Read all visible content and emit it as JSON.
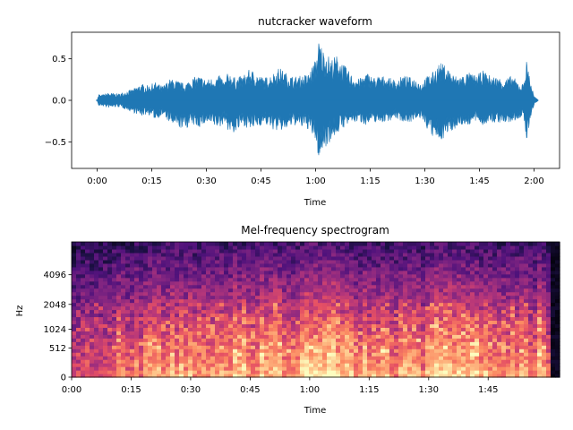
{
  "chart_data": [
    {
      "type": "line",
      "title": "nutcracker waveform",
      "xlabel": "Time",
      "ylabel": "",
      "xlim_seconds": [
        -7,
        127
      ],
      "ylim": [
        -0.82,
        0.82
      ],
      "x_ticks": [
        {
          "value": 0,
          "label": "0:00"
        },
        {
          "value": 15,
          "label": "0:15"
        },
        {
          "value": 30,
          "label": "0:30"
        },
        {
          "value": 45,
          "label": "0:45"
        },
        {
          "value": 60,
          "label": "1:00"
        },
        {
          "value": 75,
          "label": "1:15"
        },
        {
          "value": 90,
          "label": "1:30"
        },
        {
          "value": 105,
          "label": "1:45"
        },
        {
          "value": 120,
          "label": "2:00"
        }
      ],
      "y_ticks": [
        {
          "value": 0.5,
          "label": "0.5"
        },
        {
          "value": 0.0,
          "label": "0.0"
        },
        {
          "value": -0.5,
          "label": "−0.5"
        }
      ],
      "color": "#1f77b4",
      "envelope": {
        "x_seconds": [
          0,
          0.5,
          1,
          3,
          6,
          8,
          10,
          12,
          14,
          16,
          18,
          20,
          22,
          24,
          26,
          28,
          30,
          32,
          34,
          35,
          36,
          38,
          40,
          42,
          44,
          46,
          48,
          50,
          52,
          54,
          56,
          58,
          60,
          61,
          62,
          63,
          64,
          66,
          68,
          70,
          72,
          74,
          76,
          78,
          80,
          82,
          84,
          86,
          88,
          89,
          90,
          92,
          94,
          96,
          98,
          100,
          102,
          104,
          106,
          108,
          110,
          112,
          114,
          116,
          117,
          118,
          119,
          120,
          121
        ],
        "upper": [
          0.01,
          0.08,
          0.06,
          0.09,
          0.08,
          0.11,
          0.14,
          0.2,
          0.18,
          0.22,
          0.17,
          0.26,
          0.24,
          0.2,
          0.27,
          0.3,
          0.25,
          0.28,
          0.3,
          0.22,
          0.35,
          0.27,
          0.3,
          0.38,
          0.32,
          0.27,
          0.32,
          0.4,
          0.33,
          0.28,
          0.3,
          0.32,
          0.5,
          0.75,
          0.62,
          0.6,
          0.5,
          0.55,
          0.42,
          0.3,
          0.26,
          0.34,
          0.28,
          0.3,
          0.28,
          0.24,
          0.3,
          0.28,
          0.26,
          0.2,
          0.28,
          0.33,
          0.46,
          0.42,
          0.3,
          0.3,
          0.34,
          0.3,
          0.36,
          0.3,
          0.28,
          0.26,
          0.3,
          0.2,
          0.2,
          0.5,
          0.25,
          0.05,
          0.01
        ],
        "lower": [
          -0.01,
          -0.08,
          -0.06,
          -0.09,
          -0.08,
          -0.11,
          -0.15,
          -0.19,
          -0.17,
          -0.23,
          -0.18,
          -0.28,
          -0.33,
          -0.35,
          -0.3,
          -0.33,
          -0.28,
          -0.32,
          -0.33,
          -0.25,
          -0.38,
          -0.4,
          -0.3,
          -0.36,
          -0.32,
          -0.28,
          -0.35,
          -0.38,
          -0.35,
          -0.3,
          -0.33,
          -0.35,
          -0.5,
          -0.75,
          -0.6,
          -0.55,
          -0.5,
          -0.4,
          -0.32,
          -0.27,
          -0.26,
          -0.3,
          -0.26,
          -0.27,
          -0.25,
          -0.22,
          -0.26,
          -0.26,
          -0.25,
          -0.2,
          -0.3,
          -0.45,
          -0.5,
          -0.42,
          -0.35,
          -0.3,
          -0.3,
          -0.26,
          -0.3,
          -0.28,
          -0.27,
          -0.28,
          -0.27,
          -0.22,
          -0.2,
          -0.5,
          -0.23,
          -0.05,
          -0.01
        ]
      }
    },
    {
      "type": "heatmap",
      "title": "Mel-frequency spectrogram",
      "xlabel": "Time",
      "ylabel": "Hz",
      "colormap": "magma",
      "xlim_seconds": [
        0,
        123
      ],
      "y_scale": "mel",
      "ylim_hz": [
        0,
        8192
      ],
      "x_ticks": [
        {
          "value": 0,
          "label": "0:00"
        },
        {
          "value": 15,
          "label": "0:15"
        },
        {
          "value": 30,
          "label": "0:30"
        },
        {
          "value": 45,
          "label": "0:45"
        },
        {
          "value": 60,
          "label": "1:00"
        },
        {
          "value": 75,
          "label": "1:15"
        },
        {
          "value": 90,
          "label": "1:30"
        },
        {
          "value": 105,
          "label": "1:45"
        }
      ],
      "y_ticks": [
        {
          "value": 0,
          "label": "0"
        },
        {
          "value": 512,
          "label": "512"
        },
        {
          "value": 1024,
          "label": "1024"
        },
        {
          "value": 2048,
          "label": "2048"
        },
        {
          "value": 4096,
          "label": "4096"
        }
      ]
    }
  ]
}
